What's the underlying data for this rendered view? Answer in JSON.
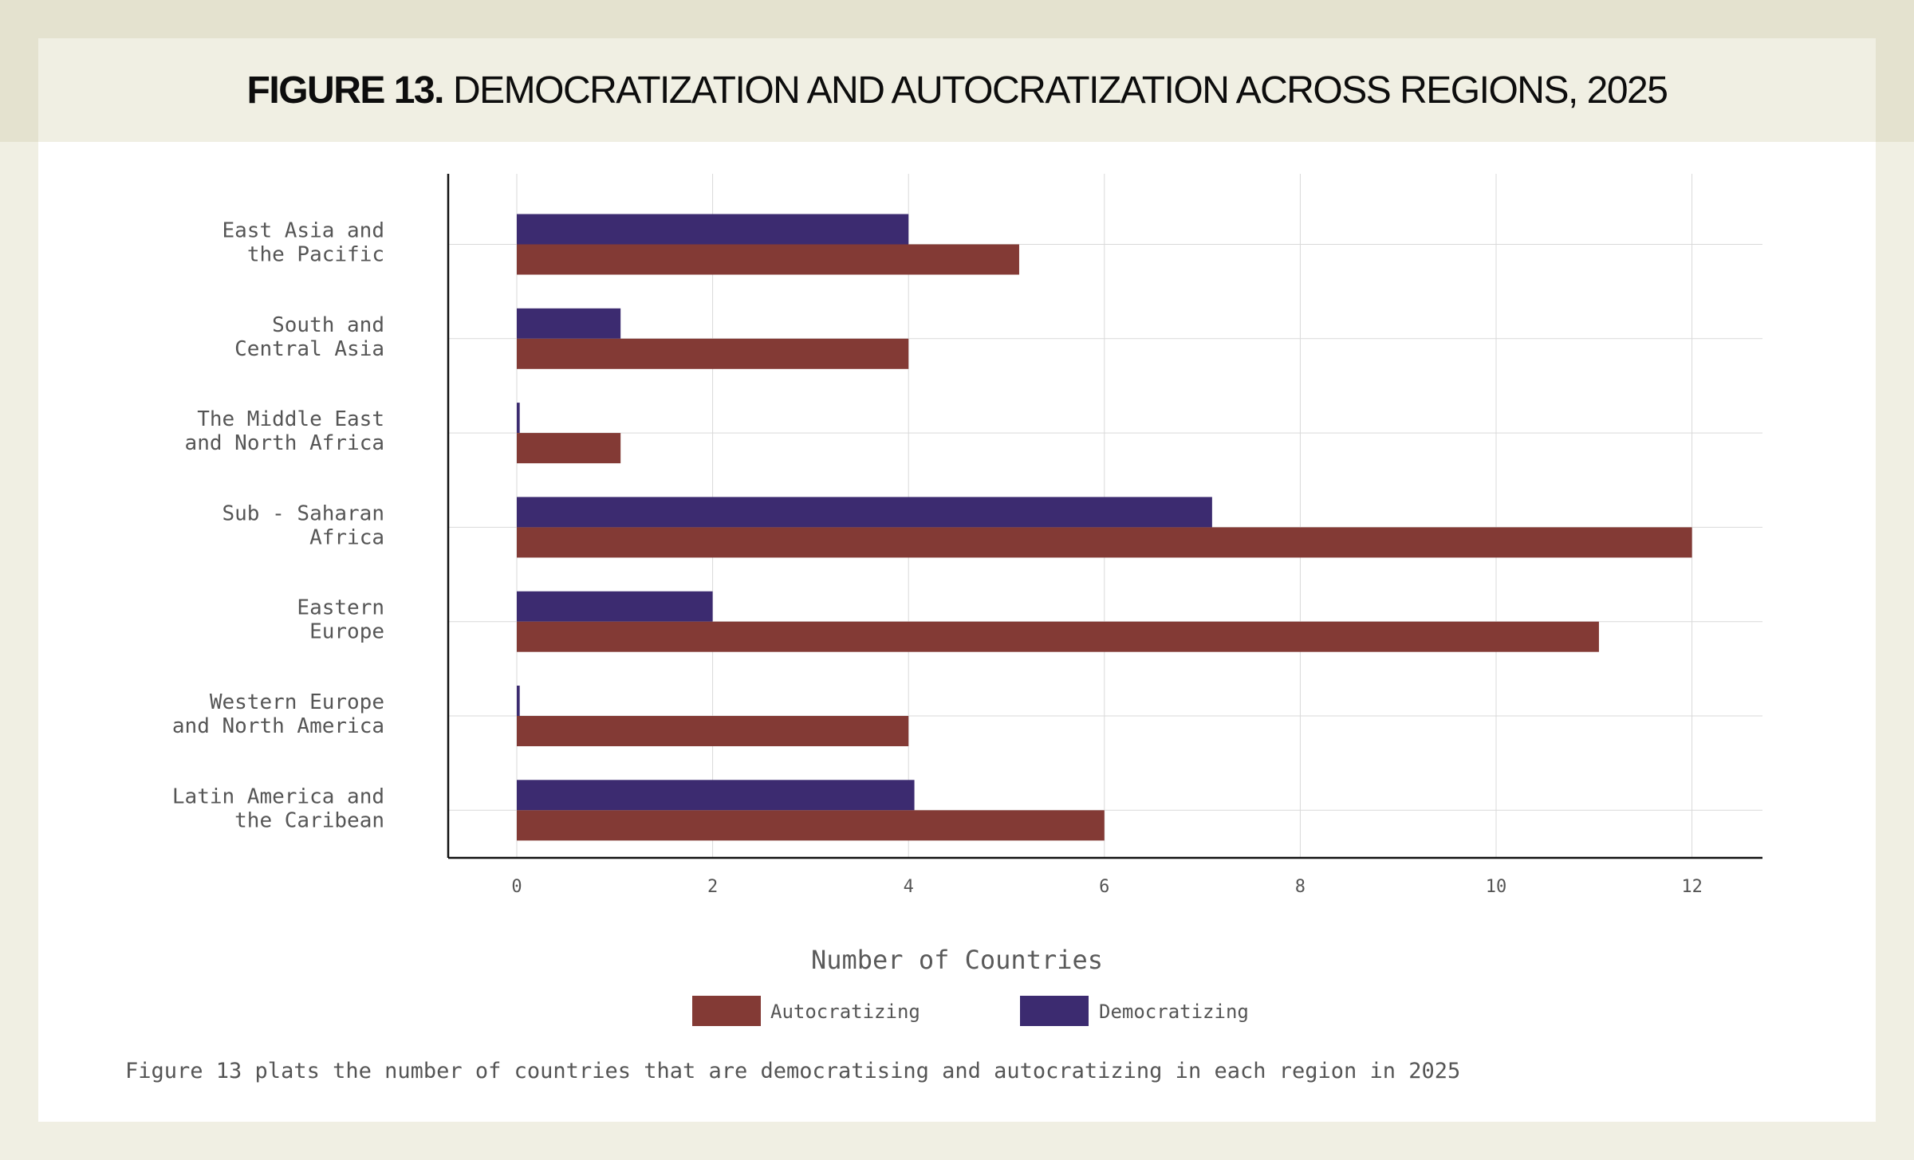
{
  "title": {
    "figure_number": "FIGURE 13.",
    "text": "DEMOCRATIZATION AND AUTOCRATIZATION ACROSS REGIONS, 2025"
  },
  "caption": "Figure 13 plats the number of countries that are democratising and autocratizing in each region in 2025",
  "colors": {
    "autocratizing": "#833a35",
    "democratizing": "#3c2b70",
    "grid": "#d9d9d9",
    "axis": "#111111",
    "text": "#555555"
  },
  "chart_data": {
    "type": "bar",
    "orientation": "horizontal",
    "title": "DEMOCRATIZATION AND AUTOCRATIZATION ACROSS REGIONS, 2025",
    "xlabel": "Number of Countries",
    "ylabel": "",
    "xlim": [
      -0.7,
      12.7
    ],
    "xticks": [
      0,
      2,
      4,
      6,
      8,
      10,
      12
    ],
    "grid": true,
    "legend_position": "bottom-center",
    "categories": [
      [
        "East Asia and",
        "the Pacific"
      ],
      [
        "South and",
        "Central Asia"
      ],
      [
        "The Middle East",
        "and North Africa"
      ],
      [
        "Sub - Saharan",
        "Africa"
      ],
      [
        "Eastern",
        "Europe"
      ],
      [
        "Western Europe",
        "and North America"
      ],
      [
        "Latin America and",
        "the Caribean"
      ]
    ],
    "series": [
      {
        "name": "Autocratizing",
        "key": "autocratizing",
        "values": [
          5.13,
          4,
          1.06,
          12,
          11.05,
          4,
          6
        ]
      },
      {
        "name": "Democratizing",
        "key": "democratizing",
        "values": [
          4,
          1.06,
          0.03,
          7.1,
          2,
          0.03,
          4.06
        ]
      }
    ]
  }
}
